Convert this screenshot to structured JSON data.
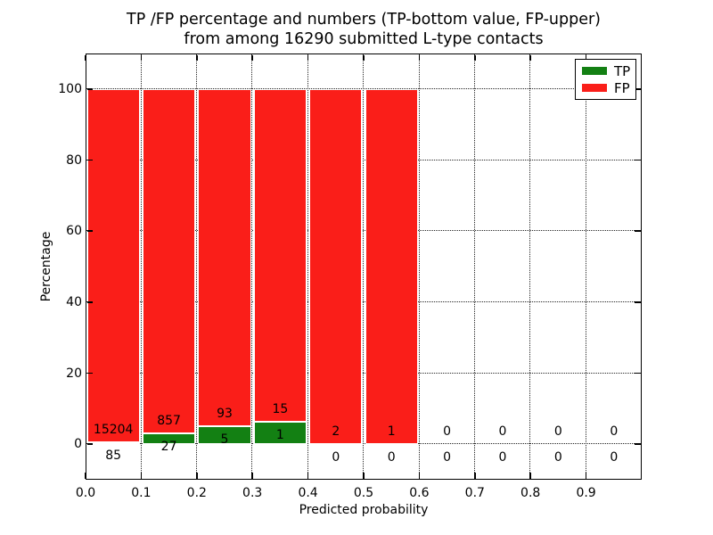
{
  "chart_data": {
    "type": "bar",
    "variant": "stacked-percentage-histogram",
    "title_lines": [
      "TP /FP percentage and numbers (TP-bottom value, FP-upper)",
      "from among 16290 submitted L-type contacts"
    ],
    "xlabel": "Predicted probability",
    "ylabel": "Percentage",
    "total_submitted": 16290,
    "bin_starts": [
      0.0,
      0.1,
      0.2,
      0.3,
      0.4,
      0.5,
      0.6,
      0.7,
      0.8,
      0.9
    ],
    "bin_width": 0.1,
    "series": [
      {
        "name": "TP",
        "color": "#138013",
        "counts": [
          85,
          27,
          5,
          1,
          0,
          0,
          0,
          0,
          0,
          0
        ]
      },
      {
        "name": "FP",
        "color": "#fa1e19",
        "counts": [
          15204,
          857,
          93,
          15,
          2,
          1,
          0,
          0,
          0,
          0
        ]
      }
    ],
    "xticks": [
      0.0,
      0.1,
      0.2,
      0.3,
      0.4,
      0.5,
      0.6,
      0.7,
      0.8,
      0.9
    ],
    "yticks": [
      0,
      20,
      40,
      60,
      80,
      100
    ],
    "xlim": [
      0.0,
      1.0
    ],
    "ylim": [
      -10,
      110
    ],
    "grid": {
      "style": "dotted",
      "color": "#000000"
    },
    "legend": {
      "position": "upper-right",
      "entries": [
        "TP",
        "FP"
      ]
    },
    "label_note": "FP count printed above each bar's TP segment, TP count printed below it"
  }
}
